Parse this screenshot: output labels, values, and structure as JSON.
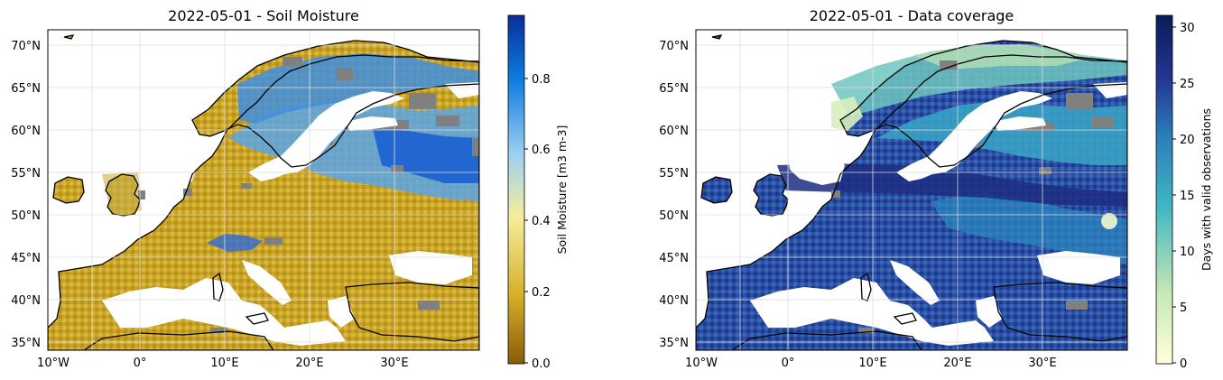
{
  "panels": [
    {
      "title": "2022-05-01 - Soil Moisture",
      "x_ticks": [
        "10°W",
        "0°",
        "10°E",
        "20°E",
        "30°E"
      ],
      "y_ticks": [
        "70°N",
        "65°N",
        "60°N",
        "55°N",
        "50°N",
        "45°N",
        "40°N",
        "35°N"
      ],
      "colorbar": {
        "label": "Soil Moisture [m3 m-3]",
        "ticks": [
          "0.8",
          "0.6",
          "0.4",
          "0.2",
          "0.0"
        ],
        "range": [
          0.0,
          0.95
        ],
        "colors": [
          "#8b5a0a",
          "#d6b12a",
          "#f5ee9c",
          "#9fd0f0",
          "#0a7be0",
          "#0b2e9c"
        ]
      }
    },
    {
      "title": "2022-05-01 - Data coverage",
      "x_ticks": [
        "10°W",
        "0°",
        "10°E",
        "20°E",
        "30°E"
      ],
      "y_ticks": [
        "70°N",
        "65°N",
        "60°N",
        "55°N",
        "50°N",
        "45°N",
        "40°N",
        "35°N"
      ],
      "colorbar": {
        "label": "Days with valid observations",
        "ticks": [
          "30",
          "25",
          "20",
          "15",
          "10",
          "5",
          "0"
        ],
        "range": [
          0,
          31
        ],
        "colors": [
          "#ffffd9",
          "#c7e9b4",
          "#41b6c4",
          "#2c7fb8",
          "#253494",
          "#081d58"
        ]
      }
    }
  ],
  "map": {
    "ocean_color": "#ffffff",
    "missing_color": "#808080",
    "extent_lon": [
      -11,
      40
    ],
    "extent_lat": [
      34,
      72
    ]
  }
}
